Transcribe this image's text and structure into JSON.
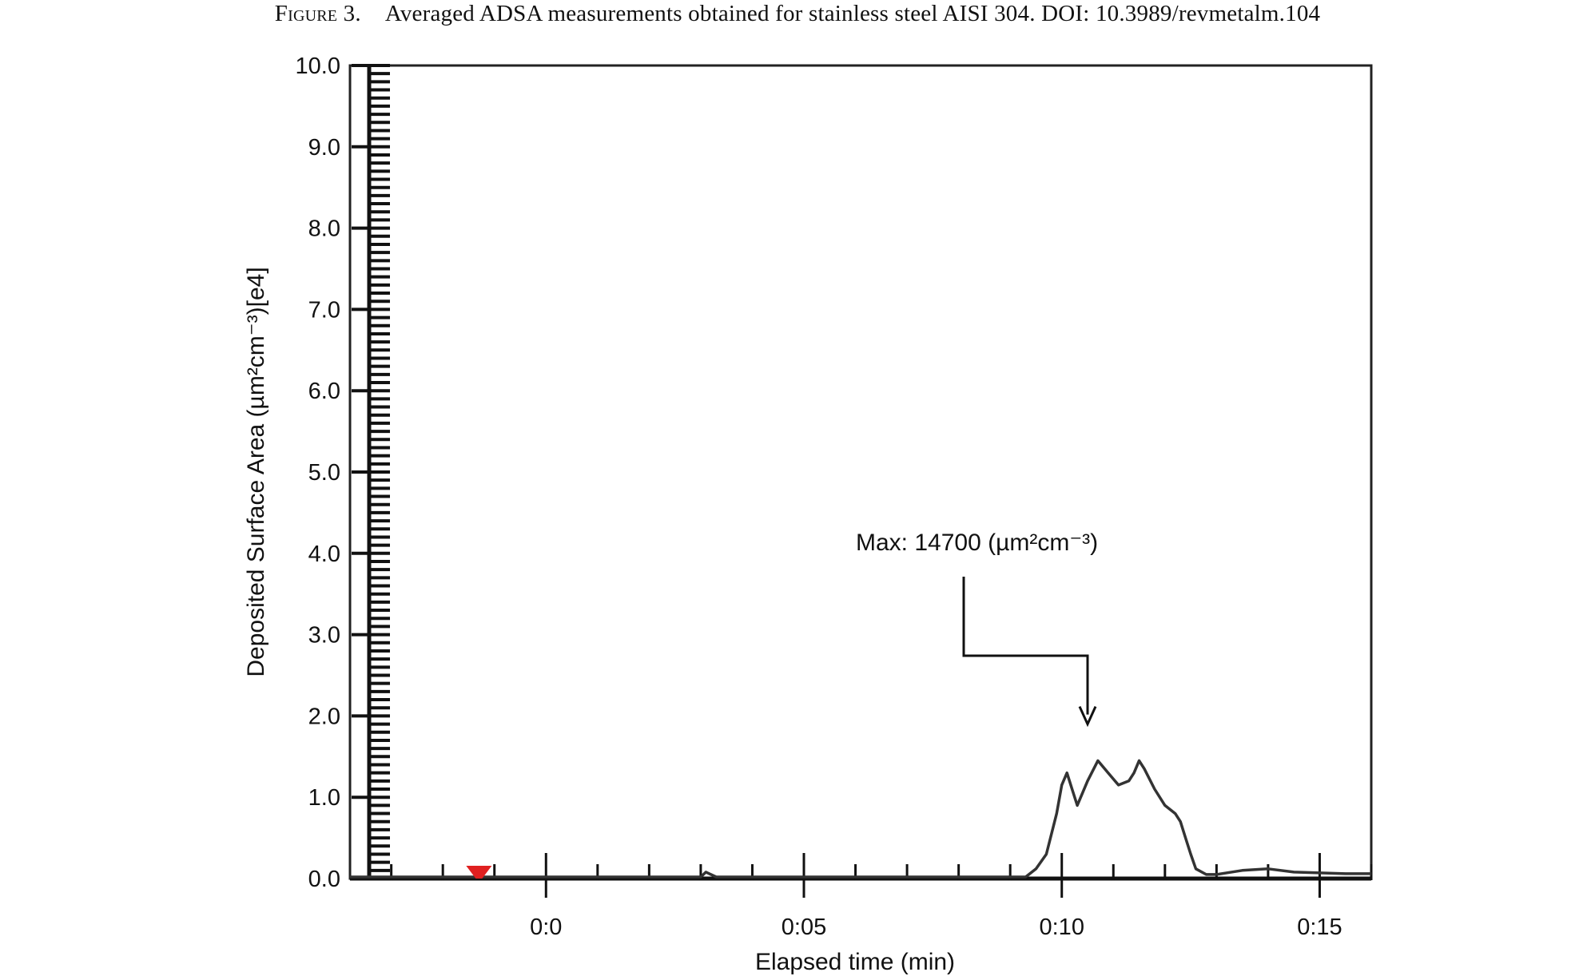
{
  "caption": {
    "figure_label": "Figure 3.",
    "text": "Averaged ADSA measurements obtained for stainless steel AISI 304. DOI: 10.3989/revmetalm.104"
  },
  "chart_data": {
    "type": "line",
    "xlabel": "Elapsed time (min)",
    "ylabel": "Deposited Surface Area (µm²cm⁻³)[e4]",
    "xlim": [
      -0.038,
      0.16
    ],
    "ylim": [
      0,
      10
    ],
    "y_ticks": [
      "0.0",
      "1.0",
      "2.0",
      "3.0",
      "4.0",
      "5.0",
      "6.0",
      "7.0",
      "8.0",
      "9.0",
      "10.0"
    ],
    "y_tick_values": [
      0,
      1,
      2,
      3,
      4,
      5,
      6,
      7,
      8,
      9,
      10
    ],
    "x_ticks": [
      "0:0",
      "0:05",
      "0:10",
      "0:15"
    ],
    "x_tick_values": [
      0,
      0.05,
      0.1,
      0.15
    ],
    "grid": false,
    "annotation": {
      "text": "Max: 14700 (µm²cm⁻³)",
      "x": 0.105,
      "y": 1.9
    },
    "marker": {
      "x": -0.013,
      "y": 0.1,
      "color": "#e02020"
    },
    "line_color": "#333333",
    "series": [
      {
        "x": [
          -0.038,
          -0.01,
          0.03,
          0.031,
          0.033,
          0.06,
          0.093,
          0.095,
          0.097,
          0.099,
          0.1,
          0.101,
          0.102,
          0.103,
          0.105,
          0.107,
          0.109,
          0.111,
          0.113,
          0.114,
          0.115,
          0.116,
          0.118,
          0.12,
          0.122,
          0.123,
          0.124,
          0.125,
          0.126,
          0.128,
          0.13,
          0.135,
          0.14,
          0.145,
          0.15,
          0.155,
          0.16
        ],
        "y": [
          0.02,
          0.02,
          0.02,
          0.08,
          0.02,
          0.02,
          0.02,
          0.12,
          0.3,
          0.8,
          1.15,
          1.3,
          1.1,
          0.9,
          1.2,
          1.45,
          1.3,
          1.15,
          1.2,
          1.3,
          1.45,
          1.35,
          1.1,
          0.9,
          0.8,
          0.7,
          0.5,
          0.3,
          0.12,
          0.05,
          0.05,
          0.1,
          0.12,
          0.08,
          0.07,
          0.06,
          0.06
        ]
      }
    ]
  }
}
